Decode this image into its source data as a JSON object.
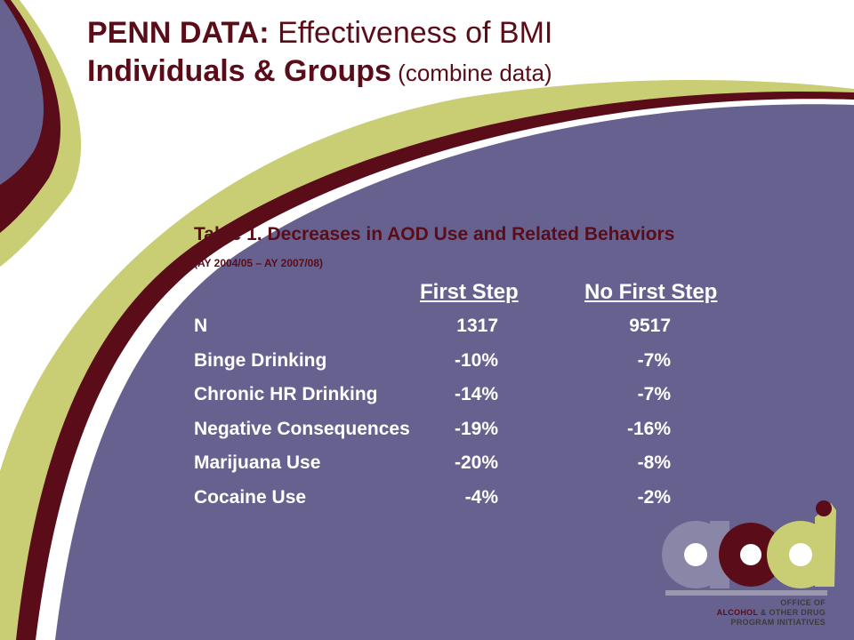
{
  "slide": {
    "title_bold": "PENN DATA:",
    "title_rest": " Effectiveness of BMI",
    "subtitle_bold": "Individuals & Groups",
    "subtitle_rest": " (combine data)"
  },
  "table": {
    "caption": "Table 1. Decreases in AOD Use and Related Behaviors",
    "subcaption": "(AY 2004/05 – AY 2007/08)",
    "columns": [
      "First Step",
      "No First Step"
    ],
    "rows": [
      {
        "label": "N",
        "first_step": "1317",
        "no_first_step": "9517"
      },
      {
        "label": "Binge Drinking",
        "first_step": "-10%",
        "no_first_step": "-7%"
      },
      {
        "label": "Chronic HR Drinking",
        "first_step": "-14%",
        "no_first_step": "-7%"
      },
      {
        "label": "Negative Consequences",
        "first_step": "-19%",
        "no_first_step": "-16%"
      },
      {
        "label": "Marijuana Use",
        "first_step": "-20%",
        "no_first_step": "-8%"
      },
      {
        "label": "Cocaine Use",
        "first_step": "-4%",
        "no_first_step": "-2%"
      }
    ]
  },
  "logo": {
    "line1": "OFFICE OF",
    "line2a": "ALCOHOL ",
    "line2b": "& OTHER DRUG",
    "line3": "PROGRAM INITIATIVES"
  },
  "colors": {
    "purple": "#67618f",
    "maroon": "#5a0d18",
    "olive": "#c9cd74",
    "text_white": "#ffffff"
  }
}
